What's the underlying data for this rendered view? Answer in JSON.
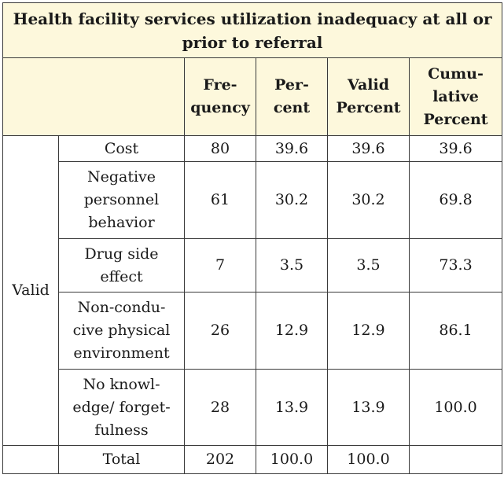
{
  "table": {
    "title_line1": "Health facility services utilization inadequacy at all or",
    "title_line2": "prior to referral",
    "headers": [
      [
        "Fre-",
        "quency"
      ],
      [
        "Per-",
        "cent"
      ],
      [
        "Valid",
        "Percent"
      ],
      [
        "Cumu-",
        "lative",
        "Percent"
      ]
    ],
    "group_label": "Valid",
    "rows": [
      {
        "label": [
          "Cost"
        ],
        "frequency": "80",
        "percent": "39.6",
        "valid_percent": "39.6",
        "cumulative_percent": "39.6"
      },
      {
        "label": [
          "Negative",
          "personnel",
          "behavior"
        ],
        "frequency": "61",
        "percent": "30.2",
        "valid_percent": "30.2",
        "cumulative_percent": "69.8"
      },
      {
        "label": [
          "Drug side",
          "effect"
        ],
        "frequency": "7",
        "percent": "3.5",
        "valid_percent": "3.5",
        "cumulative_percent": "73.3"
      },
      {
        "label": [
          "Non-condu-",
          "cive physical",
          "environment"
        ],
        "frequency": "26",
        "percent": "12.9",
        "valid_percent": "12.9",
        "cumulative_percent": "86.1"
      },
      {
        "label": [
          "No knowl-",
          "edge/ forget-",
          "fulness"
        ],
        "frequency": "28",
        "percent": "13.9",
        "valid_percent": "13.9",
        "cumulative_percent": "100.0"
      },
      {
        "label": [
          "Total"
        ],
        "frequency": "202",
        "percent": "100.0",
        "valid_percent": "100.0",
        "cumulative_percent": ""
      }
    ]
  }
}
